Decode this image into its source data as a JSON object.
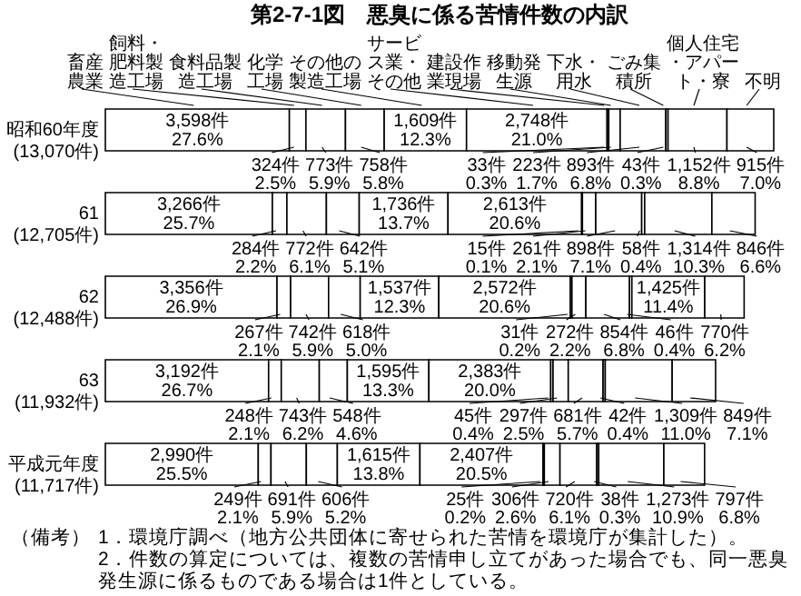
{
  "chart_data": {
    "type": "bar",
    "orientation": "horizontal",
    "stacked": true,
    "title": "第2-7-1図　悪臭に係る苦情件数の内訳",
    "categories": [
      "昭和60年度",
      "61",
      "62",
      "63",
      "平成元年度"
    ],
    "totals": [
      "(13,070件)",
      "(12,705件)",
      "(12,488件)",
      "(11,932件)",
      "(11,717件)"
    ],
    "series": [
      {
        "name": "畜産農業",
        "color": "#ffffff",
        "values": [
          3598,
          3266,
          3356,
          3192,
          2990
        ],
        "value_labels": [
          "3,598件 27.6%",
          "3,266件 25.7%",
          "3,356件 26.9%",
          "3,192件 26.7%",
          "2,990件 25.5%"
        ]
      },
      {
        "name": "飼料・肥料製造工場",
        "color": "#ffffff",
        "values": [
          324,
          284,
          267,
          248,
          249
        ],
        "value_labels": [
          "324件 2.5%",
          "284件 2.2%",
          "267件 2.1%",
          "248件 2.1%",
          "249件 2.1%"
        ]
      },
      {
        "name": "食料品製造工場",
        "color": "#ffffff",
        "values": [
          773,
          772,
          742,
          743,
          691
        ],
        "value_labels": [
          "773件 5.9%",
          "772件 6.1%",
          "742件 5.9%",
          "743件 6.2%",
          "691件 5.9%"
        ]
      },
      {
        "name": "化学工場",
        "color": "#ffffff",
        "values": [
          758,
          642,
          618,
          548,
          606
        ],
        "value_labels": [
          "758件 5.8%",
          "642件 5.1%",
          "618件 5.0%",
          "548件 4.6%",
          "606件 5.2%"
        ]
      },
      {
        "name": "その他の製造工場",
        "color": "#ffffff",
        "values": [
          1609,
          1736,
          1537,
          1595,
          1615
        ],
        "value_labels": [
          "1,609件 12.3%",
          "1,736件 13.7%",
          "1,537件 12.3%",
          "1,595件 13.3%",
          "1,615件 13.8%"
        ]
      },
      {
        "name": "サービス業・その他",
        "color": "#ffffff",
        "values": [
          2748,
          2613,
          2572,
          2383,
          2407
        ],
        "value_labels": [
          "2,748件 21.0%",
          "2,613件 20.6%",
          "2,572件 20.6%",
          "2,383件 20.0%",
          "2,407件 20.5%"
        ]
      },
      {
        "name": "建設作業現場",
        "color": "#ffffff",
        "values": [
          33,
          15,
          31,
          45,
          25
        ],
        "value_labels": [
          "33件 0.3%",
          "15件 0.1%",
          "31件 0.2%",
          "45件 0.4%",
          "25件 0.2%"
        ]
      },
      {
        "name": "移動発生源",
        "color": "#ffffff",
        "values": [
          223,
          261,
          272,
          297,
          306
        ],
        "value_labels": [
          "223件 1.7%",
          "261件 2.1%",
          "272件 2.2%",
          "297件 2.5%",
          "306件 2.6%"
        ]
      },
      {
        "name": "下水・用水",
        "color": "#ffffff",
        "values": [
          893,
          898,
          854,
          681,
          720
        ],
        "value_labels": [
          "893件 6.8%",
          "898件 7.1%",
          "854件 6.8%",
          "681件 5.7%",
          "720件 6.1%"
        ]
      },
      {
        "name": "ごみ集積所",
        "color": "#ffffff",
        "values": [
          43,
          58,
          46,
          42,
          38
        ],
        "value_labels": [
          "43件 0.3%",
          "58件 0.4%",
          "46件 0.4%",
          "42件 0.4%",
          "38件 0.3%"
        ]
      },
      {
        "name": "個人住宅・アパート・寮",
        "color": "#ffffff",
        "values": [
          1152,
          1314,
          1425,
          1309,
          1273
        ],
        "value_labels": [
          "1,152件 8.8%",
          "1,314件 10.3%",
          "1,425件 11.4%",
          "1,309件 11.0%",
          "1,273件 10.9%"
        ]
      },
      {
        "name": "不明",
        "color": "#ffffff",
        "values": [
          915,
          846,
          770,
          849,
          797
        ],
        "value_labels": [
          "915件 7.0%",
          "846件 6.6%",
          "770件 6.2%",
          "849件 7.1%",
          "797件 6.8%"
        ]
      }
    ],
    "annotations": [
      "（備考）",
      "1．環境庁調べ（地方公共団体に寄せられた苦情を環境庁が集計した）。",
      "2．件数の算定については、複数の苦情申し立てがあった場合でも、同一悪臭発生源に係るものである場合は1件としている。"
    ]
  }
}
